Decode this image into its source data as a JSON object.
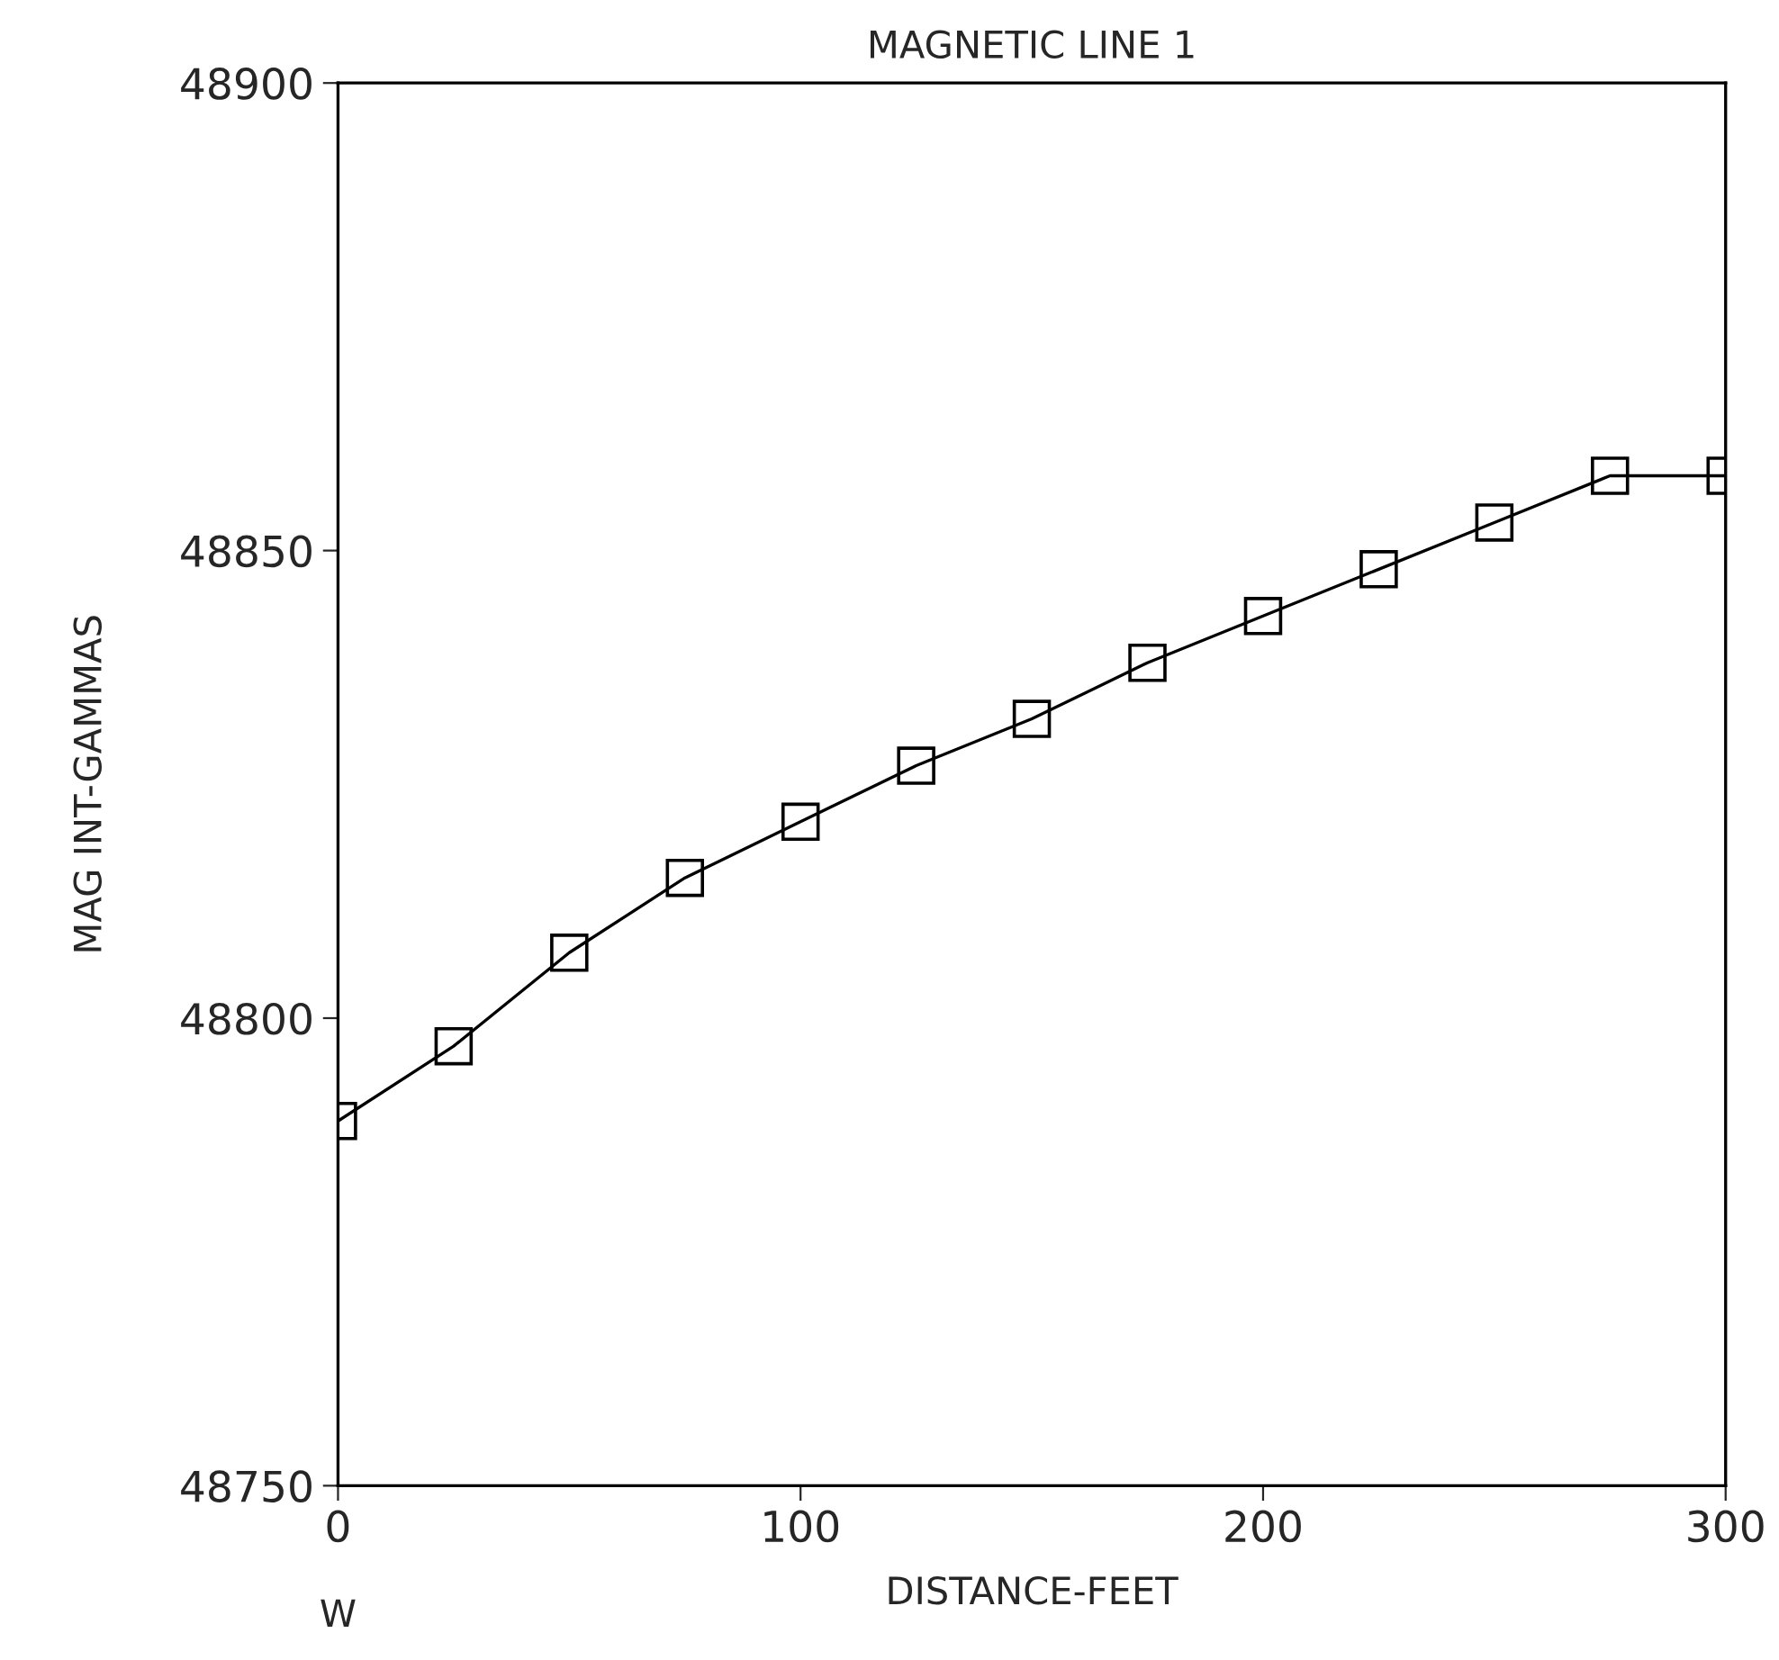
{
  "chart_data": {
    "type": "line",
    "title": "MAGNETIC LINE 1",
    "xlabel": "DISTANCE-FEET",
    "ylabel": "MAG INT-GAMMAS",
    "x": [
      0,
      25,
      50,
      75,
      100,
      125,
      150,
      175,
      200,
      225,
      250,
      275,
      300
    ],
    "series": [
      {
        "color": "#000000",
        "values": [
          48789,
          48797,
          48807,
          48815,
          48821,
          48827,
          48832,
          48838,
          48843,
          48848,
          48853,
          48858,
          48858
        ]
      }
    ],
    "xlim": [
      0,
      300
    ],
    "xticks": [
      0,
      100,
      200,
      300
    ],
    "ylim": [
      48750,
      48900
    ],
    "yticks": [
      48750,
      48800,
      48850,
      48900
    ],
    "marker": "square",
    "line_style": "solid",
    "grid": false,
    "legend": false,
    "annotations": [
      "W"
    ]
  }
}
